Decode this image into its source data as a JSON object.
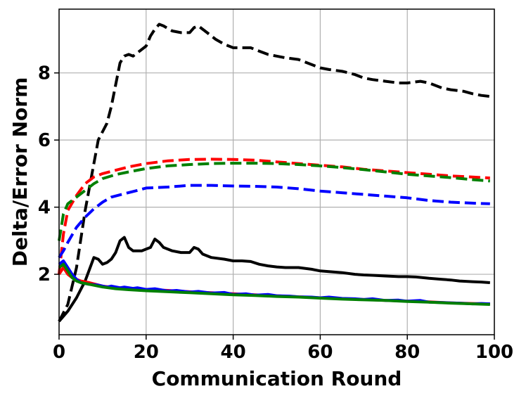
{
  "chart_data": {
    "type": "line",
    "title": "",
    "xlabel": "Communication Round",
    "ylabel": "Delta/Error Norm",
    "xlim": [
      0,
      100
    ],
    "ylim": [
      0.2,
      9.9
    ],
    "xticks": [
      0,
      20,
      40,
      60,
      80,
      100
    ],
    "yticks": [
      2,
      4,
      6,
      8
    ],
    "grid": true,
    "legend": "none",
    "series": [
      {
        "color": "#000000",
        "style": "dashed",
        "points": [
          [
            0,
            0.6
          ],
          [
            2,
            1.1
          ],
          [
            4,
            2.2
          ],
          [
            6,
            3.9
          ],
          [
            8,
            5.3
          ],
          [
            9,
            6.0
          ],
          [
            11,
            6.5
          ],
          [
            12,
            7.0
          ],
          [
            14,
            8.3
          ],
          [
            15,
            8.5
          ],
          [
            16,
            8.55
          ],
          [
            17,
            8.5
          ],
          [
            18,
            8.6
          ],
          [
            20,
            8.8
          ],
          [
            21,
            9.1
          ],
          [
            22,
            9.3
          ],
          [
            23,
            9.45
          ],
          [
            24,
            9.4
          ],
          [
            26,
            9.25
          ],
          [
            28,
            9.2
          ],
          [
            30,
            9.2
          ],
          [
            31,
            9.35
          ],
          [
            32,
            9.4
          ],
          [
            34,
            9.2
          ],
          [
            36,
            9.0
          ],
          [
            38,
            8.85
          ],
          [
            40,
            8.75
          ],
          [
            42,
            8.75
          ],
          [
            44,
            8.75
          ],
          [
            46,
            8.65
          ],
          [
            48,
            8.55
          ],
          [
            50,
            8.5
          ],
          [
            52,
            8.45
          ],
          [
            55,
            8.4
          ],
          [
            58,
            8.25
          ],
          [
            60,
            8.15
          ],
          [
            62,
            8.1
          ],
          [
            65,
            8.05
          ],
          [
            68,
            7.95
          ],
          [
            70,
            7.85
          ],
          [
            72,
            7.8
          ],
          [
            75,
            7.75
          ],
          [
            78,
            7.7
          ],
          [
            80,
            7.7
          ],
          [
            83,
            7.75
          ],
          [
            85,
            7.7
          ],
          [
            88,
            7.55
          ],
          [
            90,
            7.5
          ],
          [
            93,
            7.45
          ],
          [
            95,
            7.38
          ],
          [
            97,
            7.33
          ],
          [
            99,
            7.3
          ]
        ]
      },
      {
        "color": "#ff0000",
        "style": "dashed",
        "points": [
          [
            0,
            2.0
          ],
          [
            1,
            3.2
          ],
          [
            2,
            3.9
          ],
          [
            4,
            4.35
          ],
          [
            6,
            4.7
          ],
          [
            8,
            4.9
          ],
          [
            10,
            5.0
          ],
          [
            13,
            5.1
          ],
          [
            16,
            5.2
          ],
          [
            20,
            5.3
          ],
          [
            25,
            5.38
          ],
          [
            30,
            5.42
          ],
          [
            35,
            5.43
          ],
          [
            40,
            5.42
          ],
          [
            45,
            5.4
          ],
          [
            50,
            5.35
          ],
          [
            55,
            5.3
          ],
          [
            60,
            5.25
          ],
          [
            65,
            5.2
          ],
          [
            70,
            5.13
          ],
          [
            75,
            5.08
          ],
          [
            80,
            5.03
          ],
          [
            85,
            4.98
          ],
          [
            90,
            4.93
          ],
          [
            95,
            4.9
          ],
          [
            99,
            4.87
          ]
        ]
      },
      {
        "color": "#008000",
        "style": "dashed",
        "points": [
          [
            0,
            3.0
          ],
          [
            1,
            3.8
          ],
          [
            2,
            4.1
          ],
          [
            4,
            4.3
          ],
          [
            6,
            4.5
          ],
          [
            8,
            4.7
          ],
          [
            10,
            4.85
          ],
          [
            13,
            4.97
          ],
          [
            16,
            5.05
          ],
          [
            20,
            5.15
          ],
          [
            25,
            5.23
          ],
          [
            30,
            5.27
          ],
          [
            35,
            5.3
          ],
          [
            40,
            5.31
          ],
          [
            45,
            5.31
          ],
          [
            50,
            5.3
          ],
          [
            55,
            5.27
          ],
          [
            60,
            5.23
          ],
          [
            65,
            5.18
          ],
          [
            70,
            5.12
          ],
          [
            75,
            5.05
          ],
          [
            80,
            4.98
          ],
          [
            85,
            4.93
          ],
          [
            90,
            4.88
          ],
          [
            95,
            4.82
          ],
          [
            99,
            4.78
          ]
        ]
      },
      {
        "color": "#0000ff",
        "style": "dashed",
        "points": [
          [
            0,
            2.5
          ],
          [
            1,
            2.7
          ],
          [
            2,
            2.95
          ],
          [
            4,
            3.4
          ],
          [
            6,
            3.7
          ],
          [
            8,
            3.95
          ],
          [
            10,
            4.15
          ],
          [
            12,
            4.3
          ],
          [
            15,
            4.4
          ],
          [
            18,
            4.5
          ],
          [
            20,
            4.57
          ],
          [
            25,
            4.6
          ],
          [
            30,
            4.65
          ],
          [
            35,
            4.65
          ],
          [
            40,
            4.63
          ],
          [
            45,
            4.62
          ],
          [
            50,
            4.6
          ],
          [
            55,
            4.55
          ],
          [
            60,
            4.48
          ],
          [
            65,
            4.43
          ],
          [
            70,
            4.38
          ],
          [
            75,
            4.33
          ],
          [
            80,
            4.28
          ],
          [
            85,
            4.2
          ],
          [
            90,
            4.15
          ],
          [
            95,
            4.12
          ],
          [
            99,
            4.1
          ]
        ]
      },
      {
        "color": "#000000",
        "style": "solid",
        "points": [
          [
            0,
            0.6
          ],
          [
            2,
            0.9
          ],
          [
            4,
            1.3
          ],
          [
            6,
            1.8
          ],
          [
            8,
            2.5
          ],
          [
            9,
            2.45
          ],
          [
            10,
            2.3
          ],
          [
            11,
            2.35
          ],
          [
            12,
            2.45
          ],
          [
            13,
            2.65
          ],
          [
            14,
            3.0
          ],
          [
            15,
            3.1
          ],
          [
            16,
            2.8
          ],
          [
            17,
            2.7
          ],
          [
            18,
            2.7
          ],
          [
            19,
            2.7
          ],
          [
            20,
            2.75
          ],
          [
            21,
            2.8
          ],
          [
            22,
            3.05
          ],
          [
            23,
            2.95
          ],
          [
            24,
            2.8
          ],
          [
            26,
            2.7
          ],
          [
            28,
            2.65
          ],
          [
            30,
            2.65
          ],
          [
            31,
            2.8
          ],
          [
            32,
            2.75
          ],
          [
            33,
            2.6
          ],
          [
            35,
            2.5
          ],
          [
            38,
            2.45
          ],
          [
            40,
            2.4
          ],
          [
            42,
            2.4
          ],
          [
            44,
            2.38
          ],
          [
            46,
            2.3
          ],
          [
            48,
            2.25
          ],
          [
            50,
            2.22
          ],
          [
            52,
            2.2
          ],
          [
            55,
            2.2
          ],
          [
            58,
            2.15
          ],
          [
            60,
            2.1
          ],
          [
            62,
            2.08
          ],
          [
            65,
            2.05
          ],
          [
            68,
            2.0
          ],
          [
            70,
            1.98
          ],
          [
            72,
            1.97
          ],
          [
            75,
            1.95
          ],
          [
            78,
            1.93
          ],
          [
            80,
            1.93
          ],
          [
            82,
            1.92
          ],
          [
            85,
            1.88
          ],
          [
            88,
            1.85
          ],
          [
            90,
            1.83
          ],
          [
            92,
            1.8
          ],
          [
            95,
            1.78
          ],
          [
            97,
            1.77
          ],
          [
            99,
            1.75
          ]
        ]
      },
      {
        "color": "#ff0000",
        "style": "solid",
        "points": [
          [
            0,
            2.0
          ],
          [
            1,
            2.2
          ],
          [
            2,
            2.0
          ],
          [
            3,
            1.9
          ],
          [
            4,
            1.85
          ],
          [
            5,
            1.8
          ],
          [
            7,
            1.75
          ],
          [
            10,
            1.65
          ],
          [
            13,
            1.6
          ],
          [
            16,
            1.58
          ],
          [
            20,
            1.55
          ],
          [
            25,
            1.52
          ],
          [
            30,
            1.48
          ],
          [
            35,
            1.45
          ],
          [
            40,
            1.42
          ],
          [
            45,
            1.39
          ],
          [
            50,
            1.36
          ],
          [
            55,
            1.33
          ],
          [
            60,
            1.3
          ],
          [
            65,
            1.27
          ],
          [
            70,
            1.25
          ],
          [
            75,
            1.22
          ],
          [
            80,
            1.2
          ],
          [
            85,
            1.18
          ],
          [
            90,
            1.15
          ],
          [
            95,
            1.13
          ],
          [
            99,
            1.12
          ]
        ]
      },
      {
        "color": "#0000ff",
        "style": "solid",
        "points": [
          [
            0,
            2.3
          ],
          [
            1,
            2.4
          ],
          [
            2,
            2.2
          ],
          [
            3,
            2.0
          ],
          [
            4,
            1.85
          ],
          [
            5,
            1.75
          ],
          [
            7,
            1.7
          ],
          [
            9,
            1.68
          ],
          [
            11,
            1.62
          ],
          [
            12,
            1.65
          ],
          [
            14,
            1.6
          ],
          [
            15,
            1.62
          ],
          [
            17,
            1.58
          ],
          [
            18,
            1.6
          ],
          [
            20,
            1.55
          ],
          [
            22,
            1.57
          ],
          [
            25,
            1.5
          ],
          [
            27,
            1.52
          ],
          [
            30,
            1.47
          ],
          [
            32,
            1.49
          ],
          [
            35,
            1.44
          ],
          [
            38,
            1.46
          ],
          [
            40,
            1.4
          ],
          [
            43,
            1.42
          ],
          [
            45,
            1.38
          ],
          [
            48,
            1.4
          ],
          [
            50,
            1.36
          ],
          [
            53,
            1.35
          ],
          [
            55,
            1.33
          ],
          [
            58,
            1.32
          ],
          [
            60,
            1.3
          ],
          [
            62,
            1.32
          ],
          [
            65,
            1.28
          ],
          [
            68,
            1.27
          ],
          [
            70,
            1.25
          ],
          [
            72,
            1.27
          ],
          [
            75,
            1.22
          ],
          [
            78,
            1.23
          ],
          [
            80,
            1.2
          ],
          [
            83,
            1.22
          ],
          [
            85,
            1.17
          ],
          [
            88,
            1.16
          ],
          [
            90,
            1.15
          ],
          [
            92,
            1.14
          ],
          [
            95,
            1.12
          ],
          [
            97,
            1.13
          ],
          [
            99,
            1.12
          ]
        ]
      },
      {
        "color": "#008000",
        "style": "solid",
        "points": [
          [
            0,
            2.2
          ],
          [
            1,
            2.3
          ],
          [
            2,
            2.1
          ],
          [
            3,
            1.9
          ],
          [
            4,
            1.8
          ],
          [
            5,
            1.75
          ],
          [
            7,
            1.7
          ],
          [
            10,
            1.62
          ],
          [
            13,
            1.57
          ],
          [
            16,
            1.54
          ],
          [
            20,
            1.51
          ],
          [
            25,
            1.48
          ],
          [
            30,
            1.45
          ],
          [
            35,
            1.42
          ],
          [
            40,
            1.39
          ],
          [
            45,
            1.37
          ],
          [
            50,
            1.34
          ],
          [
            55,
            1.32
          ],
          [
            60,
            1.29
          ],
          [
            65,
            1.26
          ],
          [
            70,
            1.24
          ],
          [
            75,
            1.22
          ],
          [
            80,
            1.19
          ],
          [
            85,
            1.17
          ],
          [
            90,
            1.14
          ],
          [
            95,
            1.12
          ],
          [
            99,
            1.1
          ]
        ]
      }
    ]
  }
}
